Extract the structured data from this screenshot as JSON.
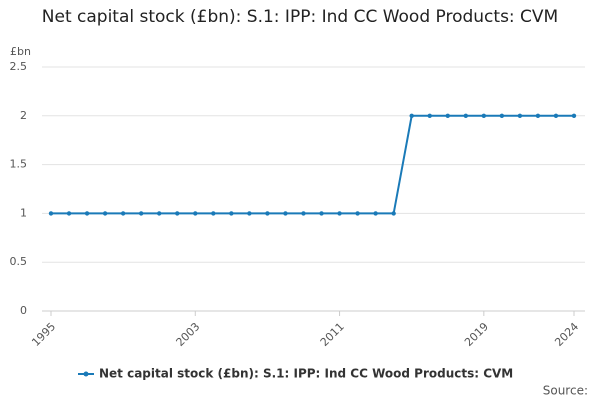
{
  "chart_data": {
    "type": "line",
    "title": "Net capital stock (£bn): S.1: IPP: Ind CC Wood Products: CVM",
    "y_label": "£bn",
    "source": "Source:",
    "x": [
      1995,
      1996,
      1997,
      1998,
      1999,
      2000,
      2001,
      2002,
      2003,
      2004,
      2005,
      2006,
      2007,
      2008,
      2009,
      2010,
      2011,
      2012,
      2013,
      2014,
      2015,
      2016,
      2017,
      2018,
      2019,
      2020,
      2021,
      2022,
      2023,
      2024
    ],
    "series": [
      {
        "name": "Net capital stock (£bn): S.1: IPP: Ind CC Wood Products: CVM",
        "color": "#1a7ab8",
        "values": [
          1,
          1,
          1,
          1,
          1,
          1,
          1,
          1,
          1,
          1,
          1,
          1,
          1,
          1,
          1,
          1,
          1,
          1,
          1,
          1,
          2,
          2,
          2,
          2,
          2,
          2,
          2,
          2,
          2,
          2
        ]
      }
    ],
    "xlim": [
      1995,
      2024
    ],
    "xticks": [
      1995,
      2003,
      2011,
      2019,
      2024
    ],
    "ylim": [
      0,
      2.5
    ],
    "yticks": [
      0,
      0.5,
      1,
      1.5,
      2,
      2.5
    ],
    "grid": true
  }
}
